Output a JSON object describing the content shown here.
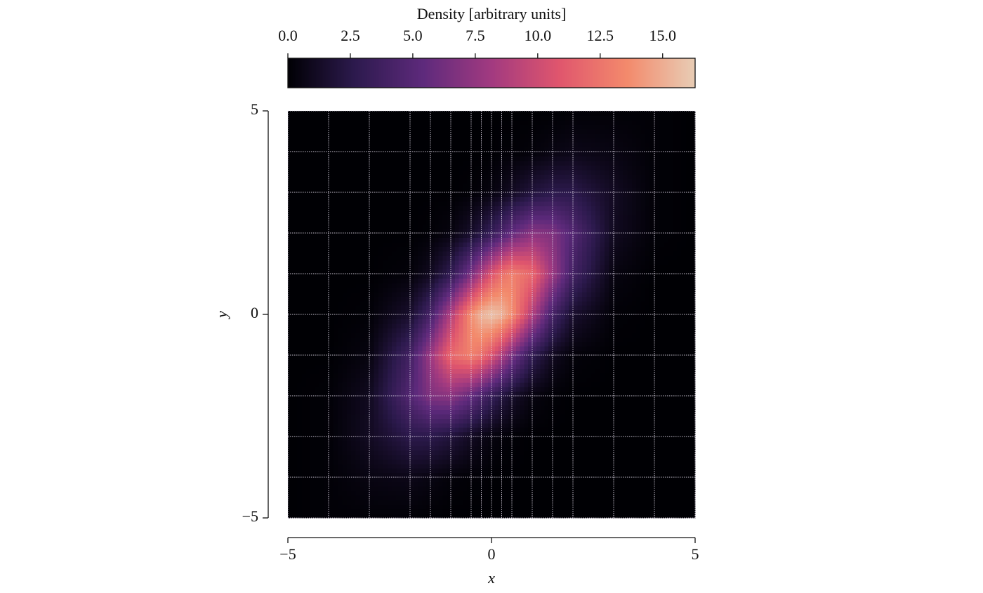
{
  "chart_data": {
    "type": "heatmap",
    "colorbar_label": "Density [arbitrary units]",
    "xlabel": "x",
    "ylabel": "y",
    "x": [
      -5,
      -4,
      -3,
      -2,
      -1.5,
      -1,
      -0.5,
      -0.25,
      0,
      0.25,
      0.5,
      1,
      1.5,
      2,
      3,
      4,
      5
    ],
    "y": [
      -5,
      -4,
      -3,
      -2,
      -1,
      0,
      1,
      2,
      3,
      4,
      5
    ],
    "z": [
      [
        0,
        0.1,
        0.1,
        0.1,
        0,
        0,
        0,
        0,
        0,
        0,
        0,
        0,
        0,
        0,
        0,
        0,
        0
      ],
      [
        0,
        0.1,
        0.5,
        0.7,
        0.5,
        0.2,
        0.1,
        0.1,
        0,
        0,
        0,
        0,
        0,
        0,
        0,
        0,
        0
      ],
      [
        0,
        0.1,
        1.1,
        2.6,
        2.6,
        2.0,
        1.1,
        0.7,
        0.4,
        0.2,
        0.1,
        0,
        0,
        0,
        0,
        0,
        0
      ],
      [
        0,
        0.1,
        1.0,
        4.8,
        6.8,
        7.2,
        5.6,
        4.4,
        3.2,
        2.2,
        1.4,
        0.4,
        0.1,
        0,
        0,
        0,
        0
      ],
      [
        0,
        0,
        0.4,
        3.9,
        7.9,
        11.9,
        13.1,
        12.3,
        10.7,
        8.7,
        6.5,
        2.9,
        1.0,
        0.2,
        0,
        0,
        0
      ],
      [
        0,
        0,
        0.1,
        1.5,
        4.1,
        8.8,
        13.8,
        15.4,
        16,
        15.4,
        13.8,
        8.8,
        4.1,
        1.5,
        0.1,
        0,
        0
      ],
      [
        0,
        0,
        0,
        0.2,
        1.0,
        2.9,
        6.5,
        8.7,
        10.7,
        12.3,
        13.1,
        11.9,
        7.9,
        3.9,
        0.4,
        0,
        0
      ],
      [
        0,
        0,
        0,
        0,
        0.1,
        0.4,
        1.4,
        2.2,
        3.2,
        4.4,
        5.6,
        7.2,
        6.8,
        4.8,
        1.0,
        0.1,
        0
      ],
      [
        0,
        0,
        0,
        0,
        0,
        0,
        0.1,
        0.2,
        0.4,
        0.7,
        1.1,
        2.0,
        2.6,
        2.6,
        1.1,
        0.1,
        0
      ],
      [
        0,
        0,
        0,
        0,
        0,
        0,
        0,
        0,
        0,
        0.1,
        0.1,
        0.2,
        0.5,
        0.7,
        0.5,
        0.1,
        0
      ],
      [
        0,
        0,
        0,
        0,
        0,
        0,
        0,
        0,
        0,
        0,
        0,
        0,
        0,
        0.1,
        0.1,
        0.1,
        0
      ]
    ],
    "xlim": [
      -5,
      5
    ],
    "ylim": [
      -5,
      5
    ],
    "xticks": [
      {
        "value": -5,
        "label": "−5"
      },
      0,
      5
    ],
    "yticks": [
      {
        "value": -5,
        "label": "−5"
      },
      0,
      5
    ],
    "clim": [
      0,
      16.3
    ],
    "cticks": [
      {
        "value": 0,
        "label": "0.0"
      },
      2.5,
      {
        "value": 5,
        "label": "5.0"
      },
      7.5,
      {
        "value": 10,
        "label": "10.0"
      },
      12.5,
      {
        "value": 15,
        "label": "15.0"
      }
    ],
    "colormap": [
      "#000004",
      "#2d1a4e",
      "#5e2a7c",
      "#a23a80",
      "#e0566d",
      "#f38a6c",
      "#e8cdb5"
    ],
    "mesh_lines": true
  }
}
